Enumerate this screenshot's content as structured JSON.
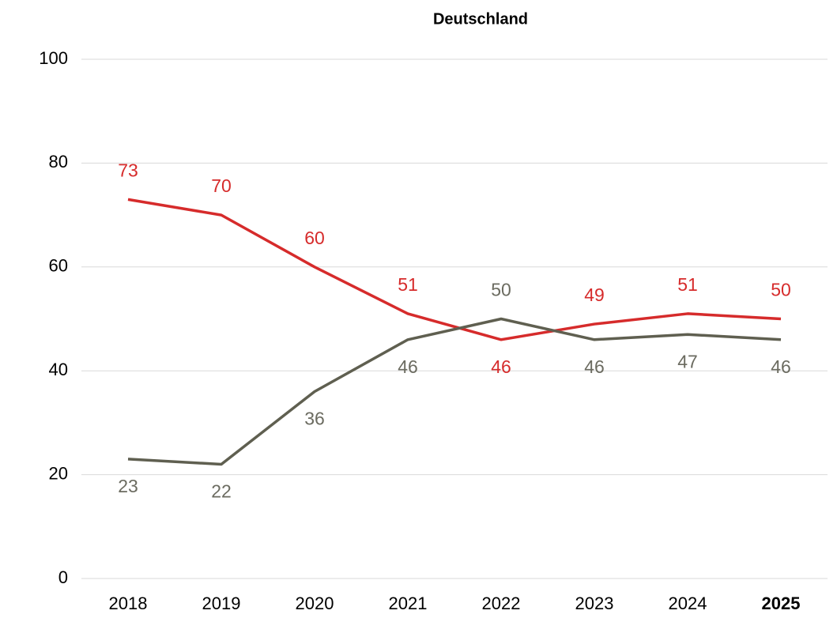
{
  "chart_data": {
    "type": "line",
    "title": "Deutschland",
    "categories": [
      "2018",
      "2019",
      "2020",
      "2021",
      "2022",
      "2023",
      "2024",
      "2025"
    ],
    "series": [
      {
        "color": "#d62b2b",
        "label_color": "#d62b2b",
        "values": [
          73,
          70,
          60,
          51,
          46,
          49,
          51,
          50
        ]
      },
      {
        "color": "#5f5f50",
        "label_color": "#6b6b60",
        "values": [
          23,
          22,
          36,
          46,
          50,
          46,
          47,
          46
        ]
      }
    ],
    "ylim": [
      0,
      100
    ],
    "yticks": [
      0,
      20,
      40,
      60,
      80,
      100
    ],
    "grid": true
  }
}
